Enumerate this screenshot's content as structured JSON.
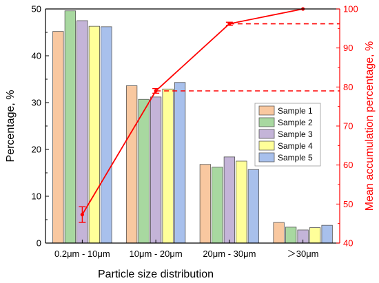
{
  "chart_data": {
    "type": "bar",
    "xlabel": "Particle size distribution",
    "ylabel": "Percentage, %",
    "y2label": "Mean accumulation percentage, %",
    "categories": [
      "0.2μm - 10μm",
      "10μm - 20μm",
      "20μm - 30μm",
      "＞30μm"
    ],
    "ylim": [
      0,
      50
    ],
    "yticks": [
      0,
      10,
      20,
      30,
      40,
      50
    ],
    "y2lim": [
      40,
      100
    ],
    "y2ticks": [
      40,
      50,
      60,
      70,
      80,
      90,
      100
    ],
    "grid": false,
    "legend_position": "right",
    "series": [
      {
        "name": "Sample 1",
        "color": "#f9c8a0",
        "values": [
          45.2,
          33.6,
          16.8,
          4.4
        ]
      },
      {
        "name": "Sample 2",
        "color": "#a8d8a0",
        "values": [
          49.6,
          30.7,
          16.2,
          3.4
        ]
      },
      {
        "name": "Sample 3",
        "color": "#c4b4d8",
        "values": [
          47.5,
          31.2,
          18.4,
          2.8
        ]
      },
      {
        "name": "Sample 4",
        "color": "#ffff99",
        "values": [
          46.3,
          32.9,
          17.5,
          3.3
        ]
      },
      {
        "name": "Sample 5",
        "color": "#a8c0ec",
        "values": [
          46.2,
          34.3,
          15.7,
          3.8
        ]
      }
    ],
    "line_series": {
      "axis": "right",
      "color": "#ff0000",
      "values": [
        47.3,
        79.0,
        96.2,
        100.0
      ],
      "error": [
        2.0,
        0.6,
        0.4,
        0.0
      ],
      "reference_lines": [
        79.0,
        96.2
      ]
    }
  }
}
